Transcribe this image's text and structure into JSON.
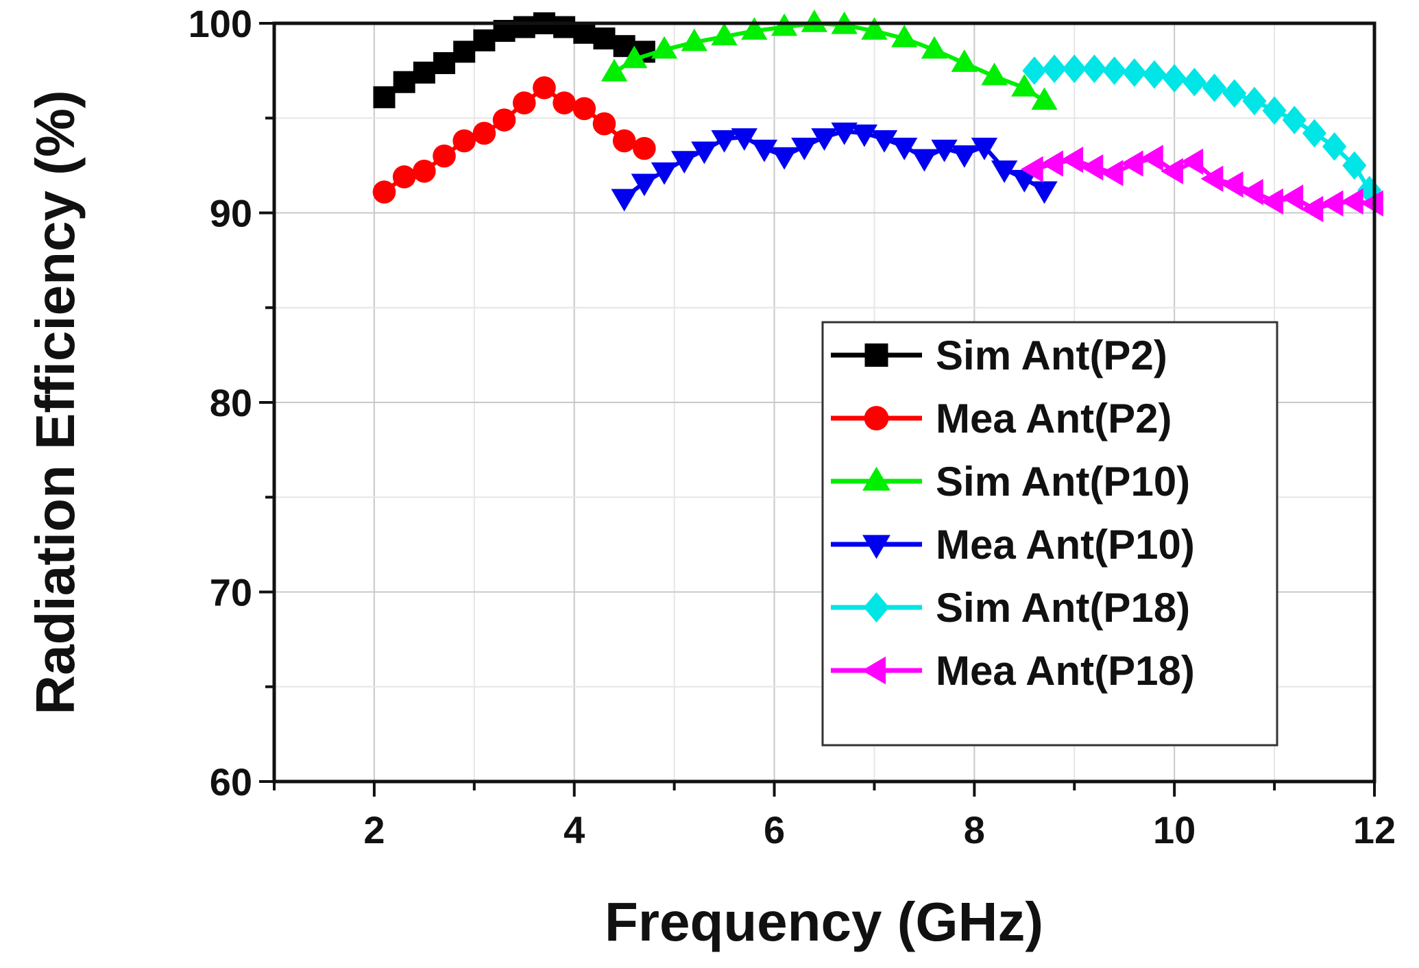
{
  "chart_data": {
    "type": "line",
    "title": "",
    "xlabel": "Frequency (GHz)",
    "ylabel": "Radiation Efficiency (%)",
    "xlim": [
      1,
      12
    ],
    "ylim": [
      60,
      100
    ],
    "x_ticks": [
      2,
      4,
      6,
      8,
      10,
      12
    ],
    "y_ticks": [
      60,
      70,
      80,
      90,
      100
    ],
    "grid": true,
    "legend_position": "center-right",
    "series": [
      {
        "name": "Sim Ant(P2)",
        "color": "#000000",
        "marker": "square",
        "x": [
          2.1,
          2.3,
          2.5,
          2.7,
          2.9,
          3.1,
          3.3,
          3.5,
          3.7,
          3.9,
          4.1,
          4.3,
          4.5,
          4.7
        ],
        "y": [
          96.1,
          96.9,
          97.4,
          97.9,
          98.5,
          99.1,
          99.6,
          99.8,
          100.0,
          99.8,
          99.5,
          99.2,
          98.8,
          98.5
        ]
      },
      {
        "name": "Mea Ant(P2)",
        "color": "#ff0000",
        "marker": "circle",
        "x": [
          2.1,
          2.3,
          2.5,
          2.7,
          2.9,
          3.1,
          3.3,
          3.5,
          3.7,
          3.9,
          4.1,
          4.3,
          4.5,
          4.7
        ],
        "y": [
          91.1,
          91.9,
          92.2,
          93.0,
          93.8,
          94.2,
          94.9,
          95.8,
          96.6,
          95.8,
          95.5,
          94.7,
          93.8,
          93.4
        ]
      },
      {
        "name": "Sim Ant(P10)",
        "color": "#00ee00",
        "marker": "triangle-up",
        "x": [
          4.4,
          4.6,
          4.9,
          5.2,
          5.5,
          5.8,
          6.1,
          6.4,
          6.7,
          7.0,
          7.3,
          7.6,
          7.9,
          8.2,
          8.5,
          8.7
        ],
        "y": [
          97.4,
          98.1,
          98.6,
          99.0,
          99.3,
          99.6,
          99.8,
          100.0,
          99.9,
          99.6,
          99.2,
          98.6,
          97.9,
          97.2,
          96.6,
          95.9
        ]
      },
      {
        "name": "Mea Ant(P10)",
        "color": "#0000ee",
        "marker": "triangle-down",
        "x": [
          4.5,
          4.7,
          4.9,
          5.1,
          5.3,
          5.5,
          5.7,
          5.9,
          6.1,
          6.3,
          6.5,
          6.7,
          6.9,
          7.1,
          7.3,
          7.5,
          7.7,
          7.9,
          8.1,
          8.3,
          8.5,
          8.7
        ],
        "y": [
          90.8,
          91.6,
          92.2,
          92.8,
          93.3,
          93.9,
          94.0,
          93.4,
          93.0,
          93.5,
          94.0,
          94.3,
          94.2,
          93.9,
          93.5,
          92.9,
          93.4,
          93.1,
          93.5,
          92.3,
          91.8,
          91.2
        ]
      },
      {
        "name": "Sim Ant(P18)",
        "color": "#00e5e5",
        "marker": "diamond",
        "x": [
          8.6,
          8.8,
          9.0,
          9.2,
          9.4,
          9.6,
          9.8,
          10.0,
          10.2,
          10.4,
          10.6,
          10.8,
          11.0,
          11.2,
          11.4,
          11.6,
          11.8,
          11.95
        ],
        "y": [
          97.5,
          97.6,
          97.6,
          97.6,
          97.5,
          97.4,
          97.3,
          97.1,
          96.9,
          96.6,
          96.3,
          95.9,
          95.4,
          94.9,
          94.2,
          93.5,
          92.5,
          91.2
        ]
      },
      {
        "name": "Mea Ant(P18)",
        "color": "#ff00ff",
        "marker": "triangle-left",
        "x": [
          8.6,
          8.8,
          9.0,
          9.2,
          9.4,
          9.6,
          9.8,
          10.0,
          10.2,
          10.4,
          10.6,
          10.8,
          11.0,
          11.2,
          11.4,
          11.6,
          11.8,
          12.0
        ],
        "y": [
          92.3,
          92.6,
          92.8,
          92.4,
          92.1,
          92.6,
          92.9,
          92.2,
          92.7,
          91.8,
          91.5,
          91.1,
          90.6,
          90.8,
          90.2,
          90.5,
          90.6,
          90.5
        ]
      }
    ]
  }
}
